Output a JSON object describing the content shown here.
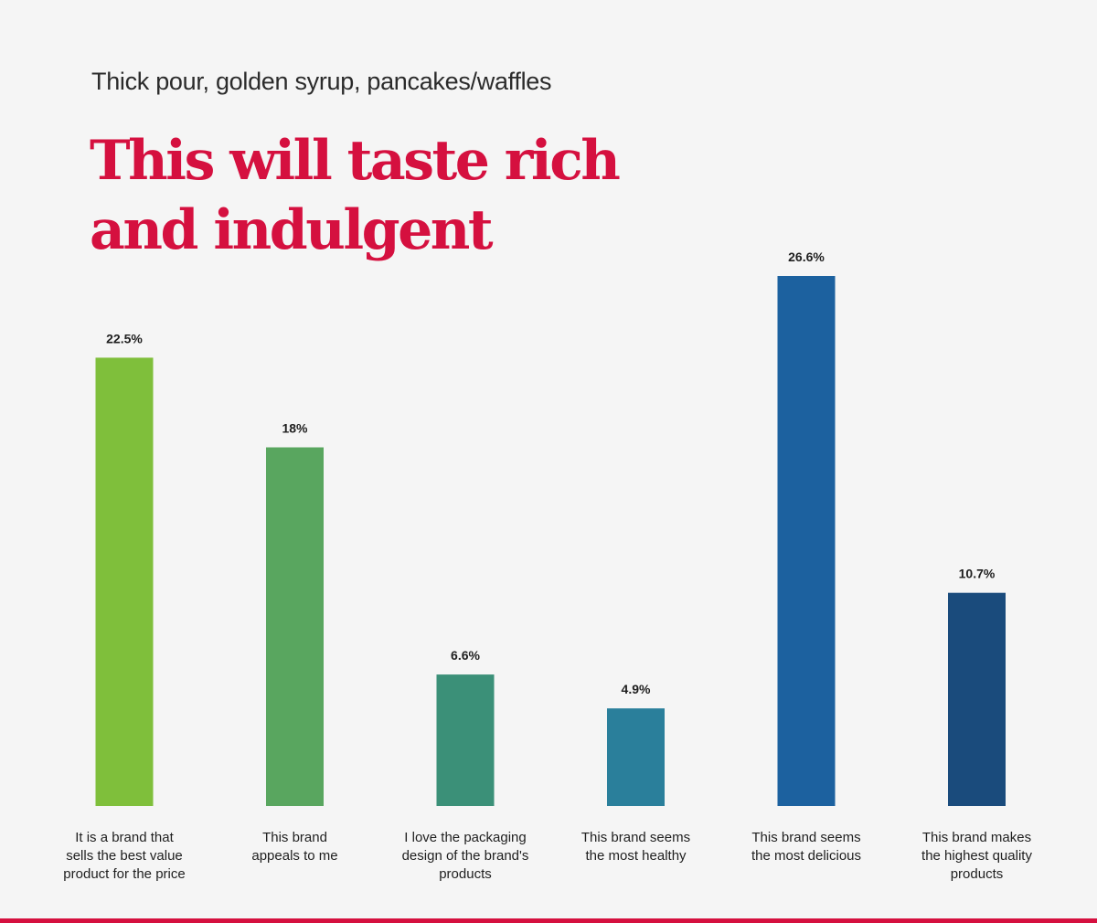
{
  "header": {
    "subtitle": "Thick pour, golden syrup, pancakes/waffles",
    "title": "This will taste rich and indulgent"
  },
  "chart_data": {
    "type": "bar",
    "title": "This will taste rich and indulgent",
    "subtitle": "Thick pour, golden syrup, pancakes/waffles",
    "xlabel": "",
    "ylabel": "",
    "ylim": [
      0,
      26.6
    ],
    "grid": false,
    "categories": [
      "It is a brand that sells the best value product for the price",
      "This brand appeals to me",
      "I love the packaging design of the brand's products",
      "This brand seems the most healthy",
      "This brand seems the most delicious",
      "This brand makes the highest quality products"
    ],
    "category_lines": [
      [
        "It is a brand that",
        "sells the best value",
        "product for the price"
      ],
      [
        "This brand",
        "appeals to me"
      ],
      [
        "I love the packaging",
        "design of the brand's",
        "products"
      ],
      [
        "This brand seems",
        "the most healthy"
      ],
      [
        "This brand seems",
        "the most delicious"
      ],
      [
        "This brand makes",
        "the highest quality",
        "products"
      ]
    ],
    "values": [
      22.5,
      18,
      6.6,
      4.9,
      26.6,
      10.7
    ],
    "value_labels": [
      "22.5%",
      "18%",
      "6.6%",
      "4.9%",
      "26.6%",
      "10.7%"
    ],
    "colors": [
      "#7fbf3b",
      "#59a65f",
      "#3b9078",
      "#2a7f9b",
      "#1c619f",
      "#1a4b7c"
    ]
  }
}
